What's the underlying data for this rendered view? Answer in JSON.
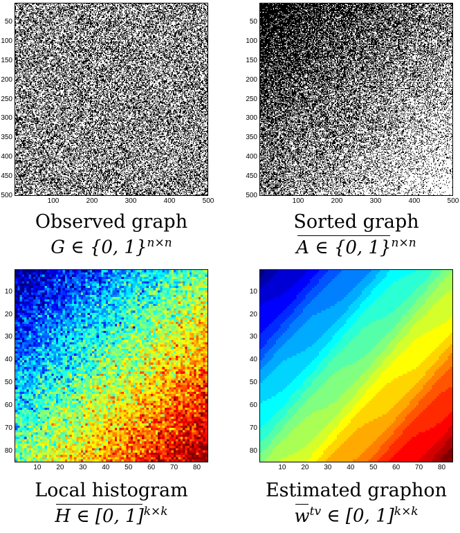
{
  "chart_data": [
    {
      "type": "heatmap",
      "panel": "top-left",
      "style": "binary",
      "pattern": "uniform-random",
      "density": 0.45,
      "n": 500,
      "xticks": [
        "100",
        "200",
        "300",
        "400",
        "500"
      ],
      "yticks": [
        "50",
        "100",
        "150",
        "200",
        "250",
        "300",
        "350",
        "400",
        "450",
        "500"
      ],
      "title": "Observed graph",
      "math": "G ∈ {0, 1}",
      "sup": "n×n"
    },
    {
      "type": "heatmap",
      "panel": "top-right",
      "style": "binary",
      "pattern": "diagonal-gradient",
      "density_range": [
        0.95,
        0.05
      ],
      "n": 500,
      "xticks": [
        "100",
        "200",
        "300",
        "400",
        "500"
      ],
      "yticks": [
        "50",
        "100",
        "150",
        "200",
        "250",
        "300",
        "350",
        "400",
        "450",
        "500"
      ],
      "title": "Sorted graph",
      "math": "A ∈ {0, 1}",
      "sup": "n×n"
    },
    {
      "type": "heatmap",
      "panel": "bottom-left",
      "style": "jet",
      "pattern": "noisy-gradient",
      "value_range": [
        0,
        1
      ],
      "k": 85,
      "xticks": [
        "10",
        "20",
        "30",
        "40",
        "50",
        "60",
        "70",
        "80"
      ],
      "yticks": [
        "10",
        "20",
        "30",
        "40",
        "50",
        "60",
        "70",
        "80"
      ],
      "title": "Local histogram",
      "math": "H ∈ [0, 1]",
      "sup": "k×k"
    },
    {
      "type": "heatmap",
      "panel": "bottom-right",
      "style": "jet",
      "pattern": "smooth-banded-gradient",
      "value_range": [
        0,
        1
      ],
      "k": 85,
      "xticks": [
        "10",
        "20",
        "30",
        "40",
        "50",
        "60",
        "70",
        "80"
      ],
      "yticks": [
        "10",
        "20",
        "30",
        "40",
        "50",
        "60",
        "70",
        "80"
      ],
      "title": "Estimated graphon",
      "math": "w",
      "math_sup_inline": "tv",
      "math_rest": " ∈ [0, 1]",
      "sup": "k×k"
    }
  ]
}
